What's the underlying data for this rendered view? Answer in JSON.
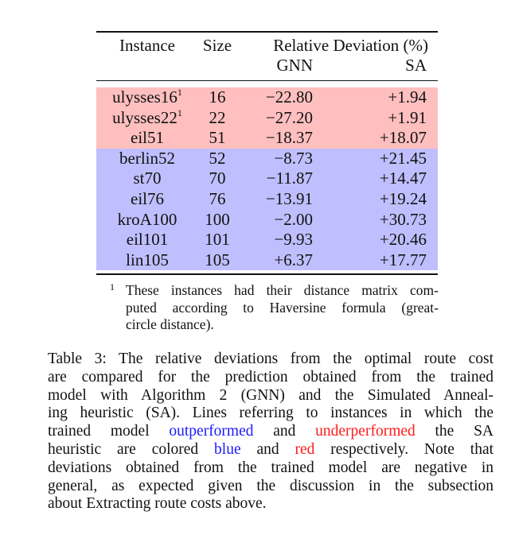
{
  "colors": {
    "underperformed_row": "#ffbfbf",
    "outperformed_row": "#bfbfff",
    "blue_text": "#1a1aff",
    "red_text": "#ff1a1a"
  },
  "table": {
    "headers": {
      "instance": "Instance",
      "size": "Size",
      "group": "Relative Deviation (%)",
      "gnn": "GNN",
      "sa": "SA"
    },
    "rows": [
      {
        "instance": "ulysses16",
        "sup": "1",
        "size": "16",
        "gnn": "−22.80",
        "sa": "+1.94",
        "group": "red"
      },
      {
        "instance": "ulysses22",
        "sup": "1",
        "size": "22",
        "gnn": "−27.20",
        "sa": "+1.91",
        "group": "red"
      },
      {
        "instance": "eil51",
        "sup": "",
        "size": "51",
        "gnn": "−18.37",
        "sa": "+18.07",
        "group": "red"
      },
      {
        "instance": "berlin52",
        "sup": "",
        "size": "52",
        "gnn": "−8.73",
        "sa": "+21.45",
        "group": "blue"
      },
      {
        "instance": "st70",
        "sup": "",
        "size": "70",
        "gnn": "−11.87",
        "sa": "+14.47",
        "group": "blue"
      },
      {
        "instance": "eil76",
        "sup": "",
        "size": "76",
        "gnn": "−13.91",
        "sa": "+19.24",
        "group": "blue"
      },
      {
        "instance": "kroA100",
        "sup": "",
        "size": "100",
        "gnn": "−2.00",
        "sa": "+30.73",
        "group": "blue"
      },
      {
        "instance": "eil101",
        "sup": "",
        "size": "101",
        "gnn": "−9.93",
        "sa": "+20.46",
        "group": "blue"
      },
      {
        "instance": "lin105",
        "sup": "",
        "size": "105",
        "gnn": "+6.37",
        "sa": "+17.77",
        "group": "blue"
      }
    ],
    "footnote": {
      "mark": "1",
      "lines": [
        "These instances had their distance matrix com-",
        "puted according to Haversine formula (great-",
        "circle distance)."
      ]
    }
  },
  "caption": {
    "lines": [
      [
        {
          "t": "Table 3: The relative deviations from the optimal route cost",
          "c": ""
        }
      ],
      [
        {
          "t": "are compared for the prediction obtained from the trained",
          "c": ""
        }
      ],
      [
        {
          "t": "model with Algorithm 2 (GNN) and the Simulated Anneal-",
          "c": ""
        }
      ],
      [
        {
          "t": "ing heuristic (SA). Lines referring to instances in which the",
          "c": ""
        }
      ],
      [
        {
          "t": "trained model ",
          "c": ""
        },
        {
          "t": "outperformed",
          "c": "blue"
        },
        {
          "t": " and ",
          "c": ""
        },
        {
          "t": "underperformed",
          "c": "red"
        },
        {
          "t": " the SA",
          "c": ""
        }
      ],
      [
        {
          "t": "heuristic are colored ",
          "c": ""
        },
        {
          "t": "blue",
          "c": "blue"
        },
        {
          "t": " and ",
          "c": ""
        },
        {
          "t": "red",
          "c": "red"
        },
        {
          "t": " respectively. Note that",
          "c": ""
        }
      ],
      [
        {
          "t": "deviations obtained from the trained model are negative in",
          "c": ""
        }
      ],
      [
        {
          "t": "general, as expected given the discussion in the subsection",
          "c": ""
        }
      ],
      [
        {
          "t": "about Extracting route costs above.",
          "c": ""
        }
      ]
    ]
  }
}
